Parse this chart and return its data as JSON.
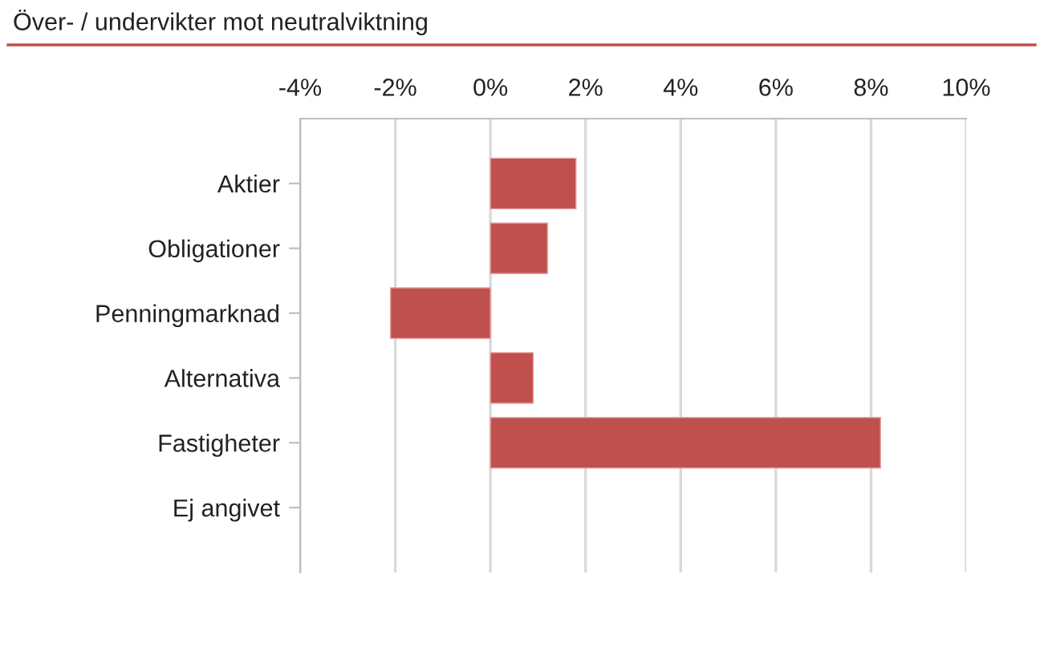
{
  "chart_data": {
    "type": "bar",
    "title": "Över- / undervikter mot neutralviktning",
    "orientation": "horizontal",
    "categories": [
      "Aktier",
      "Obligationer",
      "Penningmarknad",
      "Alternativa",
      "Fastigheter",
      "Ej angivet"
    ],
    "values": [
      1.8,
      1.2,
      -2.1,
      0.9,
      8.2,
      null
    ],
    "color": "#c0504d",
    "xlim": [
      -4,
      10
    ],
    "xticks": [
      {
        "value": -4,
        "label": "-4%"
      },
      {
        "value": -2,
        "label": "-2%"
      },
      {
        "value": 0,
        "label": "0%"
      },
      {
        "value": 2,
        "label": "2%"
      },
      {
        "value": 4,
        "label": "4%"
      },
      {
        "value": 6,
        "label": "6%"
      },
      {
        "value": 8,
        "label": "8%"
      },
      {
        "value": 10,
        "label": "10%"
      }
    ],
    "grid": "x"
  }
}
